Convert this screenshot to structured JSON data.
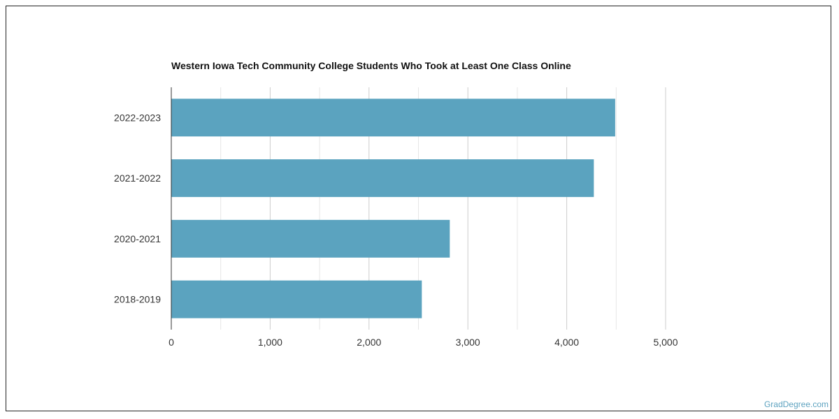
{
  "chart_data": {
    "type": "bar",
    "orientation": "horizontal",
    "title": "Western Iowa Tech Community College Students Who Took at Least One Class Online",
    "categories": [
      "2022-2023",
      "2021-2022",
      "2020-2021",
      "2018-2019"
    ],
    "values": [
      4490,
      4274,
      2817,
      2534
    ],
    "xlim": [
      0,
      5000
    ],
    "xticks": [
      0,
      1000,
      2000,
      3000,
      4000,
      5000
    ],
    "xtick_labels": [
      "0",
      "1,000",
      "2,000",
      "3,000",
      "4,000",
      "5,000"
    ],
    "grid": true,
    "bar_color": "#5ba3bf"
  },
  "credit": "GradDegree.com"
}
